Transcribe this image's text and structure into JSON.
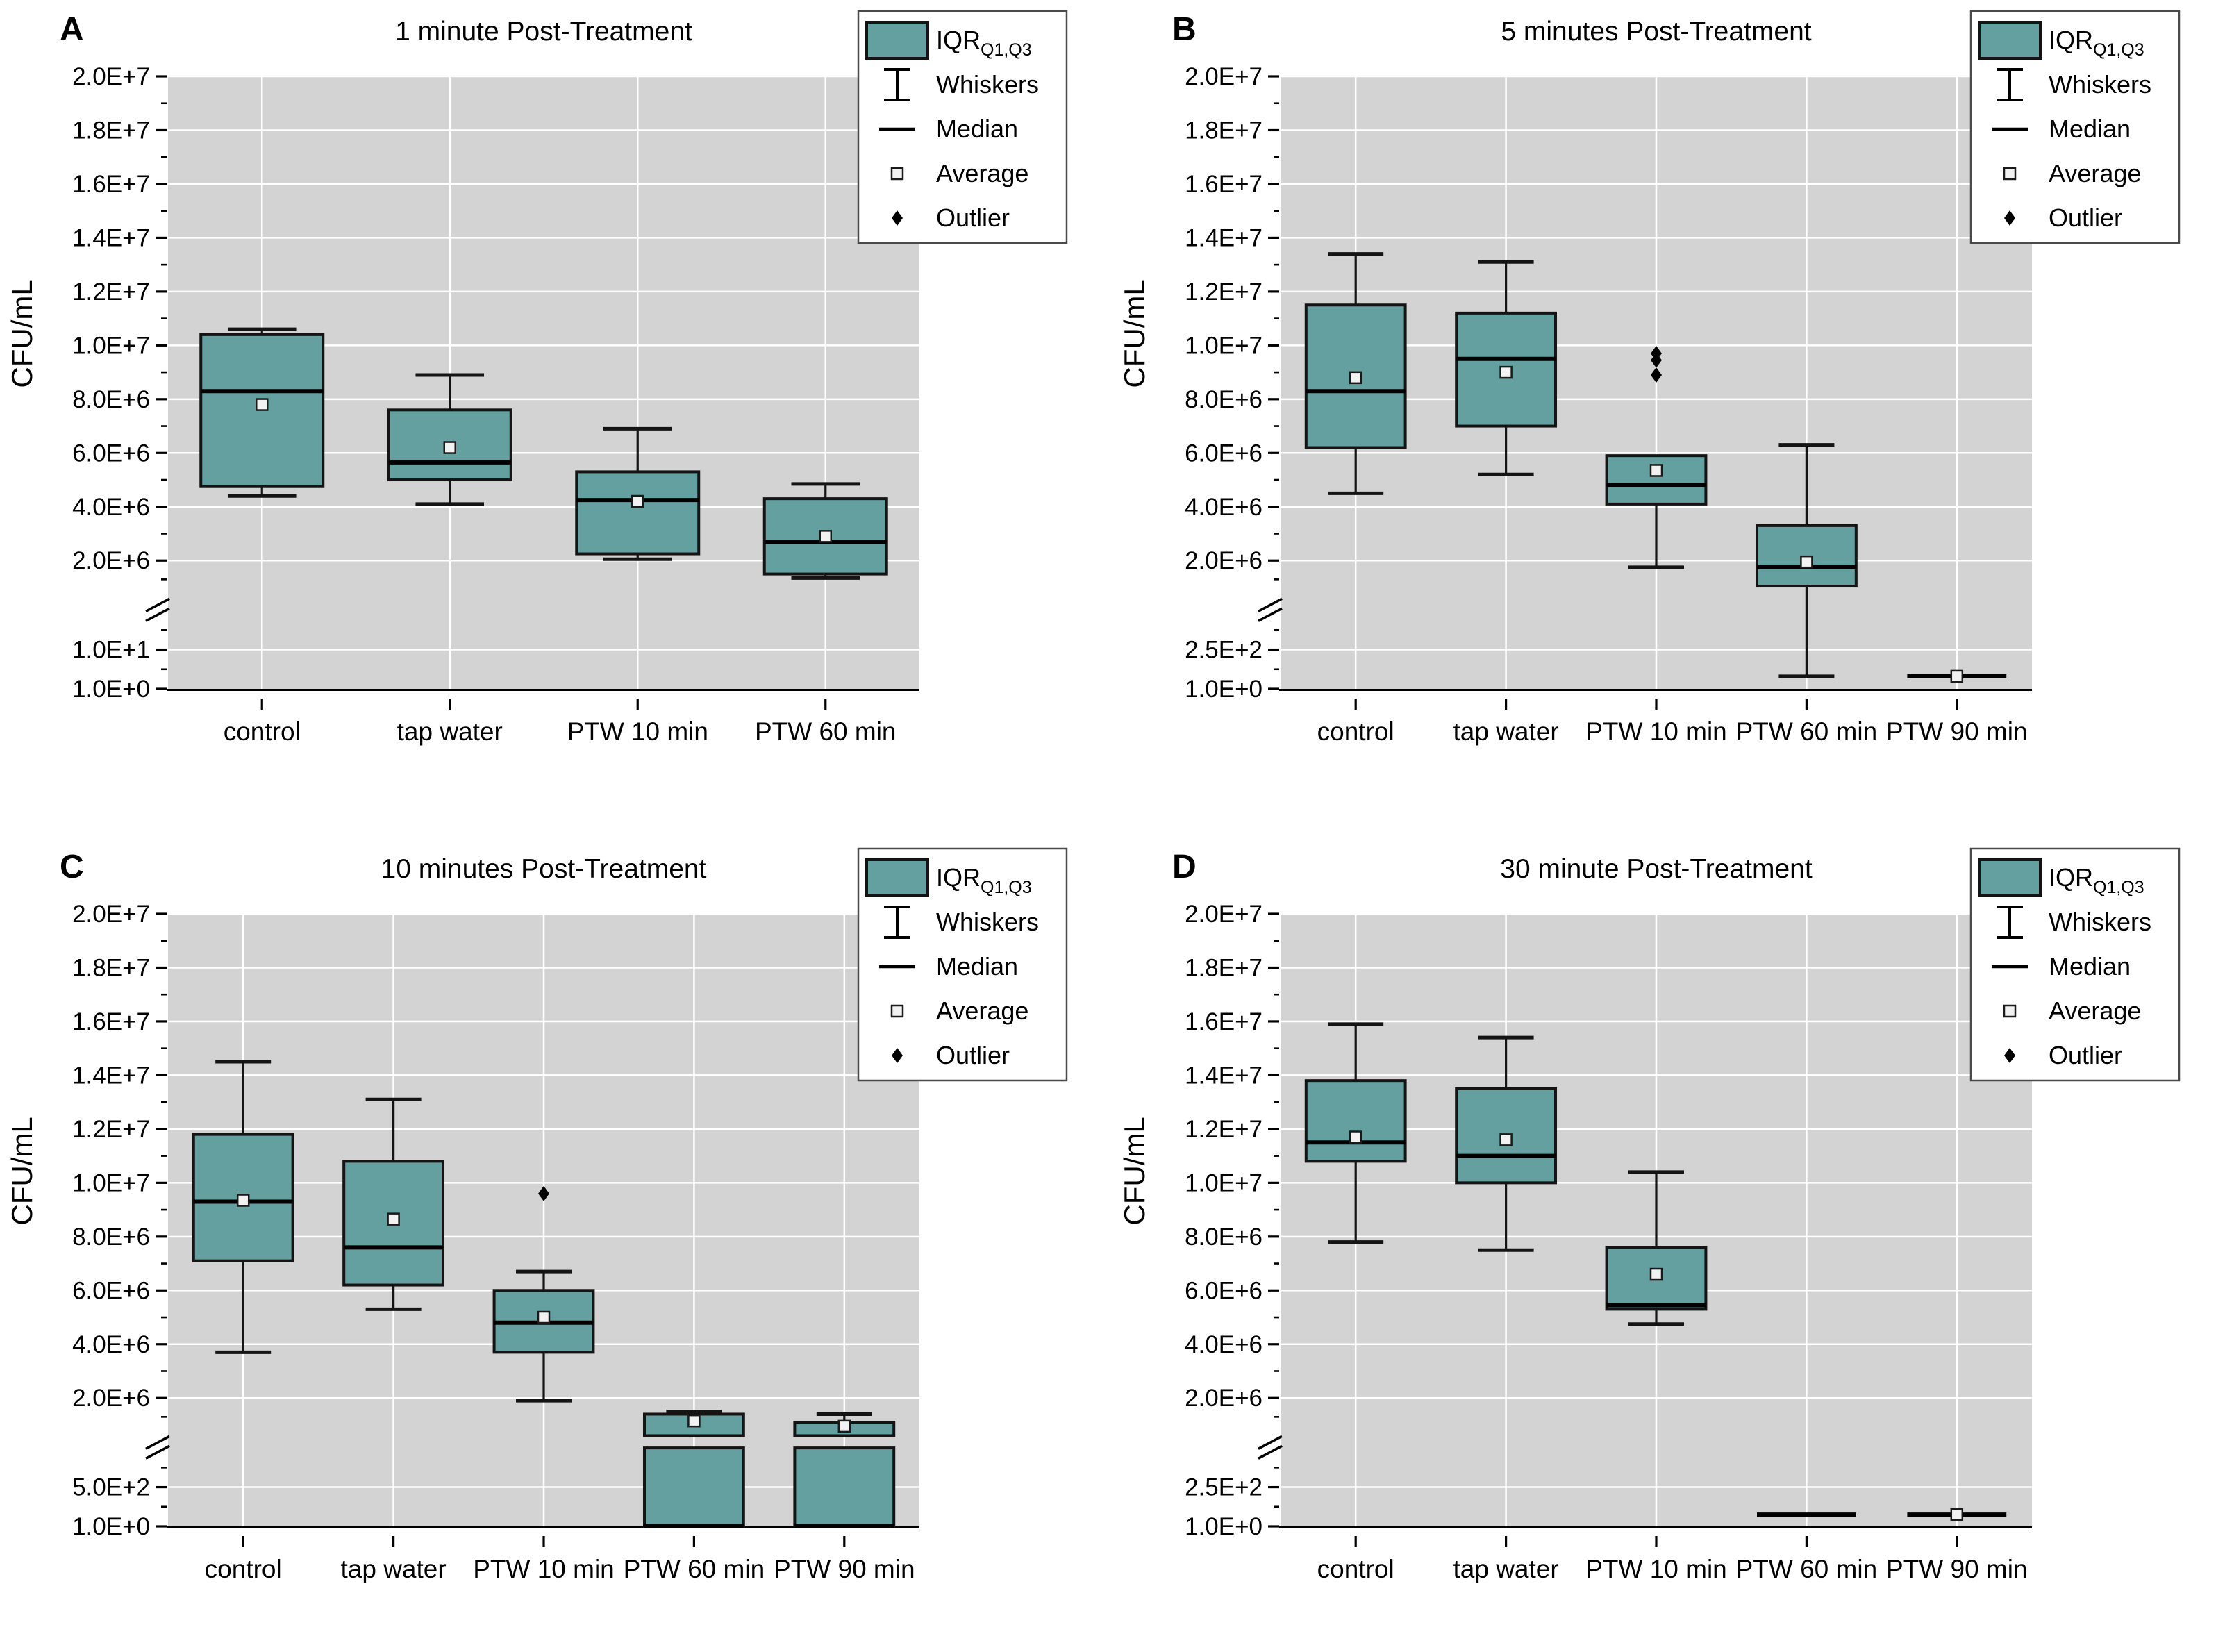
{
  "figure_title": "",
  "y_axis_label": "CFU/mL",
  "colors": {
    "background": "#ffffff",
    "plot_background": "#d3d3d3",
    "gridline": "#ffffff",
    "box_fill": "#64a0a0",
    "box_border": "#141414",
    "median_line": "#000000",
    "whisker": "#141414",
    "average_fill": "#f2f2f2",
    "average_border": "#1a1a1a",
    "outlier": "#000000",
    "text": "#000000",
    "legend_border": "#4a4a4a",
    "legend_background": "#ffffff"
  },
  "legend": {
    "items": [
      {
        "glyph": "iqr-swatch",
        "label": "IQR",
        "sub": "Q1,Q3"
      },
      {
        "glyph": "whisker-glyph",
        "label": "Whiskers"
      },
      {
        "glyph": "median-glyph",
        "label": "Median"
      },
      {
        "glyph": "average-glyph",
        "label": "Average"
      },
      {
        "glyph": "outlier-glyph",
        "label": "Outlier"
      }
    ]
  },
  "chart_data": [
    {
      "type": "box",
      "letter": "A",
      "title": "1 minute Post-Treatment",
      "ylabel": "CFU/mL",
      "upper_axis": {
        "max": 20000000.0,
        "min_displayed": 2000000.0,
        "major_ticks": [
          {
            "label": "2.0E+7",
            "value": 20000000.0
          },
          {
            "label": "1.8E+7",
            "value": 18000000.0
          },
          {
            "label": "1.6E+7",
            "value": 16000000.0
          },
          {
            "label": "1.4E+7",
            "value": 14000000.0
          },
          {
            "label": "1.2E+7",
            "value": 12000000.0
          },
          {
            "label": "1.0E+7",
            "value": 10000000.0
          },
          {
            "label": "8.0E+6",
            "value": 8000000.0
          },
          {
            "label": "6.0E+6",
            "value": 6000000.0
          },
          {
            "label": "4.0E+6",
            "value": 4000000.0
          },
          {
            "label": "2.0E+6",
            "value": 2000000.0
          }
        ]
      },
      "lower_axis": {
        "max": 20,
        "mid_tick": {
          "label": "1.0E+1",
          "value": 10
        },
        "bottom_tick": {
          "label": "1.0E+0",
          "value": 1
        }
      },
      "categories": [
        "control",
        "tap water",
        "PTW 10 min",
        "PTW 60 min"
      ],
      "boxes": [
        {
          "category": "control",
          "whisker_low": 4400000.0,
          "q1": 4750000.0,
          "median": 8300000.0,
          "average": 7800000.0,
          "q3": 10400000.0,
          "whisker_high": 10600000.0,
          "outliers": []
        },
        {
          "category": "tap water",
          "whisker_low": 4100000.0,
          "q1": 5000000.0,
          "median": 5650000.0,
          "average": 6200000.0,
          "q3": 7600000.0,
          "whisker_high": 8900000.0,
          "outliers": []
        },
        {
          "category": "PTW 10 min",
          "whisker_low": 2050000.0,
          "q1": 2250000.0,
          "median": 4250000.0,
          "average": 4200000.0,
          "q3": 5300000.0,
          "whisker_high": 6900000.0,
          "outliers": []
        },
        {
          "category": "PTW 60 min",
          "whisker_low": 1350000.0,
          "q1": 1500000.0,
          "median": 2700000.0,
          "average": 2900000.0,
          "q3": 4300000.0,
          "whisker_high": 4850000.0,
          "outliers": []
        }
      ]
    },
    {
      "type": "box",
      "letter": "B",
      "title": "5 minutes Post-Treatment",
      "ylabel": "CFU/mL",
      "upper_axis": {
        "max": 20000000.0,
        "min_displayed": 2000000.0,
        "major_ticks": [
          {
            "label": "2.0E+7",
            "value": 20000000.0
          },
          {
            "label": "1.8E+7",
            "value": 18000000.0
          },
          {
            "label": "1.6E+7",
            "value": 16000000.0
          },
          {
            "label": "1.4E+7",
            "value": 14000000.0
          },
          {
            "label": "1.2E+7",
            "value": 12000000.0
          },
          {
            "label": "1.0E+7",
            "value": 10000000.0
          },
          {
            "label": "8.0E+6",
            "value": 8000000.0
          },
          {
            "label": "6.0E+6",
            "value": 6000000.0
          },
          {
            "label": "4.0E+6",
            "value": 4000000.0
          },
          {
            "label": "2.0E+6",
            "value": 2000000.0
          }
        ]
      },
      "lower_axis": {
        "max": 500,
        "mid_tick": {
          "label": "2.5E+2",
          "value": 250
        },
        "bottom_tick": {
          "label": "1.0E+0",
          "value": 1
        }
      },
      "categories": [
        "control",
        "tap water",
        "PTW 10 min",
        "PTW 60 min",
        "PTW 90 min"
      ],
      "boxes": [
        {
          "category": "control",
          "whisker_low": 4500000.0,
          "q1": 6200000.0,
          "median": 8300000.0,
          "average": 8800000.0,
          "q3": 11500000.0,
          "whisker_high": 13400000.0,
          "outliers": []
        },
        {
          "category": "tap water",
          "whisker_low": 5200000.0,
          "q1": 7000000.0,
          "median": 9500000.0,
          "average": 9000000.0,
          "q3": 11200000.0,
          "whisker_high": 13100000.0,
          "outliers": []
        },
        {
          "category": "PTW 10 min",
          "whisker_low": 1750000.0,
          "q1": 4100000.0,
          "median": 4800000.0,
          "average": 5350000.0,
          "q3": 5900000.0,
          "whisker_high": null,
          "outliers": [
            9700000.0,
            9450000.0,
            8900000.0
          ]
        },
        {
          "category": "PTW 60 min",
          "whisker_low": 80,
          "q1": 1050000.0,
          "median": 1750000.0,
          "average": 1950000.0,
          "q3": 3300000.0,
          "whisker_high": 6300000.0,
          "outliers": []
        },
        {
          "category": "PTW 90 min",
          "line_only": true,
          "value": 80,
          "average": 80,
          "outliers": []
        }
      ]
    },
    {
      "type": "box",
      "letter": "C",
      "title": "10 minutes Post-Treatment",
      "ylabel": "CFU/mL",
      "upper_axis": {
        "max": 20000000.0,
        "min_displayed": 2000000.0,
        "major_ticks": [
          {
            "label": "2.0E+7",
            "value": 20000000.0
          },
          {
            "label": "1.8E+7",
            "value": 18000000.0
          },
          {
            "label": "1.6E+7",
            "value": 16000000.0
          },
          {
            "label": "1.4E+7",
            "value": 14000000.0
          },
          {
            "label": "1.2E+7",
            "value": 12000000.0
          },
          {
            "label": "1.0E+7",
            "value": 10000000.0
          },
          {
            "label": "8.0E+6",
            "value": 8000000.0
          },
          {
            "label": "6.0E+6",
            "value": 6000000.0
          },
          {
            "label": "4.0E+6",
            "value": 4000000.0
          },
          {
            "label": "2.0E+6",
            "value": 2000000.0
          }
        ]
      },
      "lower_axis": {
        "max": 1000,
        "mid_tick": {
          "label": "5.0E+2",
          "value": 500
        },
        "bottom_tick": {
          "label": "1.0E+0",
          "value": 1
        }
      },
      "categories": [
        "control",
        "tap water",
        "PTW 10 min",
        "PTW 60 min",
        "PTW 90 min"
      ],
      "boxes": [
        {
          "category": "control",
          "whisker_low": 3700000.0,
          "q1": 7100000.0,
          "median": 9300000.0,
          "average": 9350000.0,
          "q3": 11800000.0,
          "whisker_high": 14500000.0,
          "outliers": []
        },
        {
          "category": "tap water",
          "whisker_low": 5300000.0,
          "q1": 6200000.0,
          "median": 7600000.0,
          "average": 8650000.0,
          "q3": 10800000.0,
          "whisker_high": 13100000.0,
          "outliers": []
        },
        {
          "category": "PTW 10 min",
          "whisker_low": 1900000.0,
          "q1": 3700000.0,
          "median": 4800000.0,
          "average": 5000000.0,
          "q3": 6000000.0,
          "whisker_high": 6700000.0,
          "outliers": [
            9600000.0
          ]
        },
        {
          "category": "PTW 60 min",
          "whisker_low": null,
          "q1": 2,
          "median": 3,
          "average": 1150000.0,
          "q3": 1400000.0,
          "whisker_high": 1500000.0,
          "outliers": []
        },
        {
          "category": "PTW 90 min",
          "whisker_low": null,
          "q1": 2,
          "median": 3,
          "average": 950000.0,
          "q3": 1100000.0,
          "whisker_high": 1400000.0,
          "outliers": []
        }
      ]
    },
    {
      "type": "box",
      "letter": "D",
      "title": "30 minute Post-Treatment",
      "ylabel": "CFU/mL",
      "upper_axis": {
        "max": 20000000.0,
        "min_displayed": 2000000.0,
        "major_ticks": [
          {
            "label": "2.0E+7",
            "value": 20000000.0
          },
          {
            "label": "1.8E+7",
            "value": 18000000.0
          },
          {
            "label": "1.6E+7",
            "value": 16000000.0
          },
          {
            "label": "1.4E+7",
            "value": 14000000.0
          },
          {
            "label": "1.2E+7",
            "value": 12000000.0
          },
          {
            "label": "1.0E+7",
            "value": 10000000.0
          },
          {
            "label": "8.0E+6",
            "value": 8000000.0
          },
          {
            "label": "6.0E+6",
            "value": 6000000.0
          },
          {
            "label": "4.0E+6",
            "value": 4000000.0
          },
          {
            "label": "2.0E+6",
            "value": 2000000.0
          }
        ]
      },
      "lower_axis": {
        "max": 500,
        "mid_tick": {
          "label": "2.5E+2",
          "value": 250
        },
        "bottom_tick": {
          "label": "1.0E+0",
          "value": 1
        }
      },
      "categories": [
        "control",
        "tap water",
        "PTW 10 min",
        "PTW 60 min",
        "PTW 90 min"
      ],
      "boxes": [
        {
          "category": "control",
          "whisker_low": 7800000.0,
          "q1": 10800000.0,
          "median": 11500000.0,
          "average": 11700000.0,
          "q3": 13800000.0,
          "whisker_high": 15900000.0,
          "outliers": []
        },
        {
          "category": "tap water",
          "whisker_low": 7500000.0,
          "q1": 10000000.0,
          "median": 11000000.0,
          "average": 11600000.0,
          "q3": 13500000.0,
          "whisker_high": 15400000.0,
          "outliers": []
        },
        {
          "category": "PTW 10 min",
          "whisker_low": 4750000.0,
          "q1": 5300000.0,
          "median": 5450000.0,
          "average": 6600000.0,
          "q3": 7600000.0,
          "whisker_high": 10400000.0,
          "outliers": []
        },
        {
          "category": "PTW 60 min",
          "line_only": true,
          "value": 75,
          "average": null,
          "outliers": []
        },
        {
          "category": "PTW 90 min",
          "line_only": true,
          "value": 75,
          "average": 75,
          "outliers": []
        }
      ]
    }
  ]
}
